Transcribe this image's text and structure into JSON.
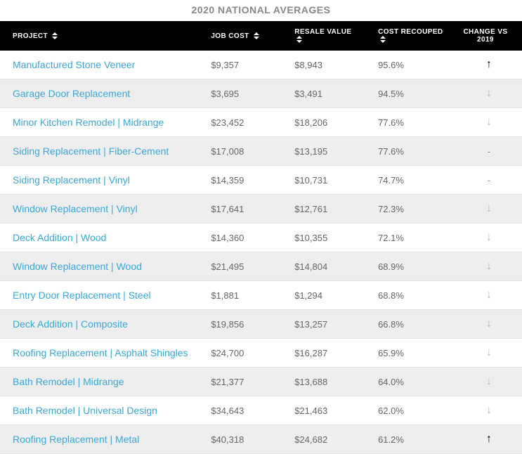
{
  "title": "2020 NATIONAL AVERAGES",
  "colors": {
    "header_bg": "#000000",
    "header_text": "#ffffff",
    "row_even_bg": "#eeeeee",
    "row_odd_bg": "#ffffff",
    "border": "#e4e4e4",
    "link": "#3aa7d9",
    "value_text": "#666666",
    "title_text": "#888888",
    "arrow_up": "#000000",
    "arrow_down": "#b8b8b8"
  },
  "typography": {
    "title_fontsize": 14,
    "header_fontsize": 10,
    "link_fontsize": 14,
    "value_fontsize": 13
  },
  "columns": [
    {
      "key": "project",
      "label": "PROJECT",
      "sortable": true,
      "width_pct": 38
    },
    {
      "key": "job_cost",
      "label": "JOB COST",
      "sortable": true,
      "width_pct": 16
    },
    {
      "key": "resale_value",
      "label": "RESALE VALUE",
      "sortable": true,
      "width_pct": 16
    },
    {
      "key": "cost_recouped",
      "label": "COST RECOUPED",
      "sortable": true,
      "width_pct": 16
    },
    {
      "key": "change",
      "label": "CHANGE VS 2019",
      "sortable": false,
      "width_pct": 14
    }
  ],
  "rows": [
    {
      "project": "Manufactured Stone Veneer",
      "job_cost": "$9,357",
      "resale_value": "$8,943",
      "cost_recouped": "95.6%",
      "change": "up"
    },
    {
      "project": "Garage Door Replacement",
      "job_cost": "$3,695",
      "resale_value": "$3,491",
      "cost_recouped": "94.5%",
      "change": "down"
    },
    {
      "project": "Minor Kitchen Remodel | Midrange",
      "job_cost": "$23,452",
      "resale_value": "$18,206",
      "cost_recouped": "77.6%",
      "change": "down"
    },
    {
      "project": "Siding Replacement | Fiber-Cement",
      "job_cost": "$17,008",
      "resale_value": "$13,195",
      "cost_recouped": "77.6%",
      "change": "none"
    },
    {
      "project": "Siding Replacement | Vinyl",
      "job_cost": "$14,359",
      "resale_value": "$10,731",
      "cost_recouped": "74.7%",
      "change": "none"
    },
    {
      "project": "Window Replacement | Vinyl",
      "job_cost": "$17,641",
      "resale_value": "$12,761",
      "cost_recouped": "72.3%",
      "change": "down"
    },
    {
      "project": "Deck Addition | Wood",
      "job_cost": "$14,360",
      "resale_value": "$10,355",
      "cost_recouped": "72.1%",
      "change": "down"
    },
    {
      "project": "Window Replacement | Wood",
      "job_cost": "$21,495",
      "resale_value": "$14,804",
      "cost_recouped": "68.9%",
      "change": "down"
    },
    {
      "project": "Entry Door Replacement | Steel",
      "job_cost": "$1,881",
      "resale_value": "$1,294",
      "cost_recouped": "68.8%",
      "change": "down"
    },
    {
      "project": "Deck Addition | Composite",
      "job_cost": "$19,856",
      "resale_value": "$13,257",
      "cost_recouped": "66.8%",
      "change": "down"
    },
    {
      "project": "Roofing Replacement | Asphalt Shingles",
      "job_cost": "$24,700",
      "resale_value": "$16,287",
      "cost_recouped": "65.9%",
      "change": "down"
    },
    {
      "project": "Bath Remodel | Midrange",
      "job_cost": "$21,377",
      "resale_value": "$13,688",
      "cost_recouped": "64.0%",
      "change": "down"
    },
    {
      "project": "Bath Remodel | Universal Design",
      "job_cost": "$34,643",
      "resale_value": "$21,463",
      "cost_recouped": "62.0%",
      "change": "down"
    },
    {
      "project": "Roofing Replacement | Metal",
      "job_cost": "$40,318",
      "resale_value": "$24,682",
      "cost_recouped": "61.2%",
      "change": "up"
    }
  ]
}
